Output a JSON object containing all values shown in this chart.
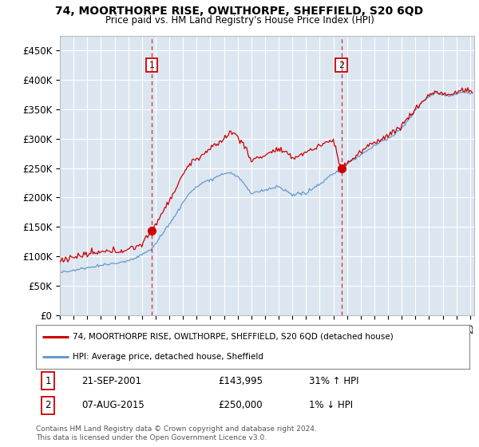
{
  "title": "74, MOORTHORPE RISE, OWLTHORPE, SHEFFIELD, S20 6QD",
  "subtitle": "Price paid vs. HM Land Registry's House Price Index (HPI)",
  "yticks": [
    0,
    50000,
    100000,
    150000,
    200000,
    250000,
    300000,
    350000,
    400000,
    450000
  ],
  "ylim": [
    0,
    475000
  ],
  "xlim_start": 1995.0,
  "xlim_end": 2025.3,
  "background_color": "#ffffff",
  "plot_bg_color": "#dce6f1",
  "grid_color": "#ffffff",
  "red_line_color": "#cc0000",
  "blue_line_color": "#6699cc",
  "sale1_date_num": 2001.72,
  "sale1_price": 143995,
  "sale2_date_num": 2015.6,
  "sale2_price": 250000,
  "sale1_date_str": "21-SEP-2001",
  "sale1_price_str": "£143,995",
  "sale1_hpi_str": "31% ↑ HPI",
  "sale2_date_str": "07-AUG-2015",
  "sale2_price_str": "£250,000",
  "sale2_hpi_str": "1% ↓ HPI",
  "legend_line1": "74, MOORTHORPE RISE, OWLTHORPE, SHEFFIELD, S20 6QD (detached house)",
  "legend_line2": "HPI: Average price, detached house, Sheffield",
  "footer": "Contains HM Land Registry data © Crown copyright and database right 2024.\nThis data is licensed under the Open Government Licence v3.0."
}
